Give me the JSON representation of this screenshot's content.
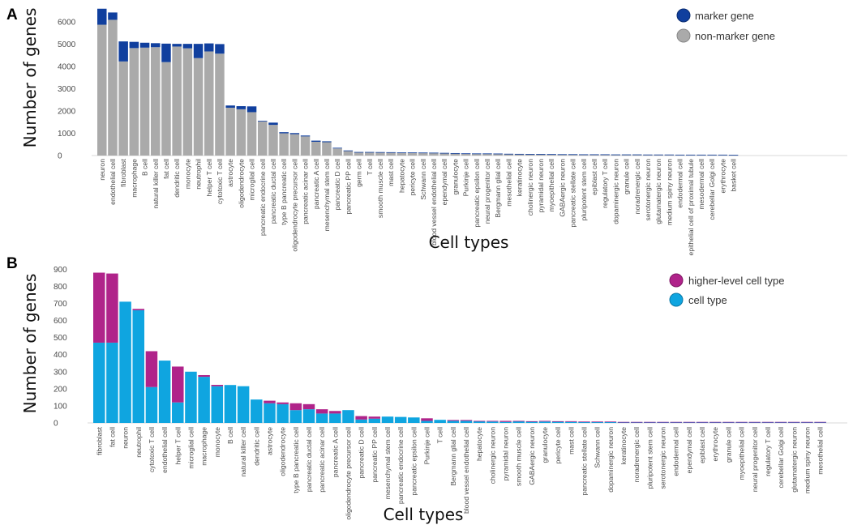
{
  "chart_data": [
    {
      "panel": "A",
      "type": "bar",
      "stacked": true,
      "xlabel": "Cell types",
      "ylabel": "Number of genes",
      "ylim": [
        0,
        6700
      ],
      "yticks": [
        0,
        1000,
        2000,
        3000,
        4000,
        5000,
        6000
      ],
      "legend_position": "top-right",
      "categories": [
        "neuron",
        "endothelial cell",
        "fibroblast",
        "macrophage",
        "B cell",
        "natural killer cell",
        "fat cell",
        "dendritic cell",
        "monocyte",
        "neutrophil",
        "helper T cell",
        "cytotoxic T cell",
        "astrocyte",
        "oligodendrocyte",
        "microglial cell",
        "pancreatic endocrine cell",
        "pancreatic ductal cell",
        "type B pancreatic cell",
        "oligodendrocyte precursor cell",
        "pancreatic acinar cell",
        "pancreatic A cell",
        "mesenchymal stem cell",
        "pancreatic D cell",
        "pancreatic PP cell",
        "germ cell",
        "T cell",
        "smooth muscle cell",
        "mast cell",
        "hepatocyte",
        "pericyte cell",
        "Schwann cell",
        "blood vessel endothelial cell",
        "ependymal cell",
        "granulocyte",
        "Purkinje cell",
        "pancreatic epsilon cell",
        "neural progenitor cell",
        "Bergmann glial cell",
        "mesothelial cell",
        "keratinocyte",
        "cholinergic neuron",
        "pyramidal neuron",
        "myoepithelial cell",
        "GABAergic neuron",
        "pancreatic stellate cell",
        "pluripotent stem cell",
        "epiblast cell",
        "regulatory T cell",
        "dopaminergic neuron",
        "granule cell",
        "noradrenergic cell",
        "serotonergic neuron",
        "glutamatergic neuron",
        "medium spiny neuron",
        "endodermal cell",
        "epithelial cell of proximal tubule",
        "mesodermal cell",
        "cerebellar Golgi cell",
        "erythrocyte",
        "basket cell"
      ],
      "series": [
        {
          "name": "non-marker gene",
          "color": "#aaaaaa",
          "values": [
            5880,
            6100,
            4230,
            4830,
            4850,
            4870,
            4200,
            4900,
            4820,
            4380,
            4680,
            4580,
            2150,
            2080,
            1950,
            1530,
            1380,
            1000,
            960,
            860,
            620,
            600,
            320,
            210,
            150,
            150,
            145,
            140,
            130,
            130,
            125,
            120,
            110,
            100,
            90,
            85,
            85,
            80,
            70,
            65,
            60,
            60,
            55,
            50,
            50,
            45,
            45,
            45,
            40,
            40,
            40,
            35,
            35,
            35,
            30,
            30,
            30,
            30,
            30,
            25
          ]
        },
        {
          "name": "marker gene",
          "color": "#103f9e",
          "values": [
            720,
            330,
            900,
            280,
            220,
            180,
            830,
            120,
            200,
            640,
            360,
            430,
            100,
            140,
            260,
            30,
            100,
            50,
            50,
            40,
            50,
            40,
            30,
            20,
            10,
            10,
            10,
            10,
            10,
            10,
            10,
            10,
            10,
            10,
            10,
            10,
            10,
            10,
            10,
            10,
            10,
            10,
            10,
            10,
            10,
            10,
            10,
            10,
            10,
            10,
            10,
            10,
            10,
            10,
            10,
            10,
            10,
            10,
            10,
            10
          ]
        }
      ]
    },
    {
      "panel": "B",
      "type": "bar",
      "stacked": true,
      "xlabel": "Cell types",
      "ylabel": "Number of genes",
      "ylim": [
        0,
        930
      ],
      "yticks": [
        0,
        100,
        200,
        300,
        400,
        500,
        600,
        700,
        800,
        900
      ],
      "legend_position": "top-right",
      "categories": [
        "fibroblast",
        "fat cell",
        "neuron",
        "neutrophil",
        "cytotoxic T cell",
        "endothelial cell",
        "helper T cell",
        "microglial cell",
        "macrophage",
        "monocyte",
        "B cell",
        "natural killer cell",
        "dendritic cell",
        "astrocyte",
        "oligodendrocyte",
        "type B pancreatic cell",
        "pancreatic ductal cell",
        "pancreatic acinar cell",
        "pancreatic A cell",
        "oligodendrocyte precursor cell",
        "pancreatic D cell",
        "pancreatic PP cell",
        "mesenchymal stem cell",
        "pancreatic endocrine cell",
        "pancreatic epsilon cell",
        "Purkinje cell",
        "T cell",
        "Bergmann glial cell",
        "blood vessel endothelial cell",
        "hepatocyte",
        "cholinergic neuron",
        "pyramidal neuron",
        "smooth muscle cell",
        "GABAergic neuron",
        "granulocyte",
        "pericyte cell",
        "mast cell",
        "pancreatic stellate cell",
        "Schwann cell",
        "dopaminergic neuron",
        "keratinocyte",
        "noradrenergic cell",
        "pluripotent stem cell",
        "serotonergic neuron",
        "endodermal cell",
        "ependymal cell",
        "epiblast cell",
        "erythrocyte",
        "granule cell",
        "myoepithelial cell",
        "neural progenitor cell",
        "regulatory T cell",
        "cerebellar Golgi cell",
        "glutamatergic neuron",
        "medium spiny neuron",
        "mesothelial cell"
      ],
      "series": [
        {
          "name": "cell type",
          "color": "#0fa5e0",
          "values": [
            470,
            470,
            710,
            660,
            210,
            365,
            120,
            300,
            270,
            215,
            222,
            215,
            137,
            115,
            110,
            75,
            80,
            55,
            55,
            75,
            20,
            25,
            37,
            35,
            32,
            12,
            18,
            12,
            12,
            10,
            8,
            6,
            10,
            8,
            8,
            8,
            6,
            6,
            6,
            6,
            5,
            5,
            5,
            5,
            5,
            5,
            5,
            5,
            5,
            5,
            5,
            5,
            5,
            5,
            5,
            5
          ]
        },
        {
          "name": "higher-level cell type",
          "color": "#b0238a",
          "values": [
            410,
            405,
            0,
            8,
            210,
            0,
            210,
            0,
            10,
            8,
            0,
            0,
            0,
            15,
            10,
            40,
            30,
            25,
            15,
            0,
            20,
            12,
            0,
            0,
            0,
            15,
            0,
            5,
            5,
            2,
            4,
            6,
            2,
            2,
            4,
            2,
            4,
            2,
            2,
            2,
            1,
            1,
            1,
            1,
            1,
            1,
            1,
            1,
            1,
            1,
            1,
            1,
            1,
            1,
            1,
            1
          ]
        }
      ]
    }
  ]
}
